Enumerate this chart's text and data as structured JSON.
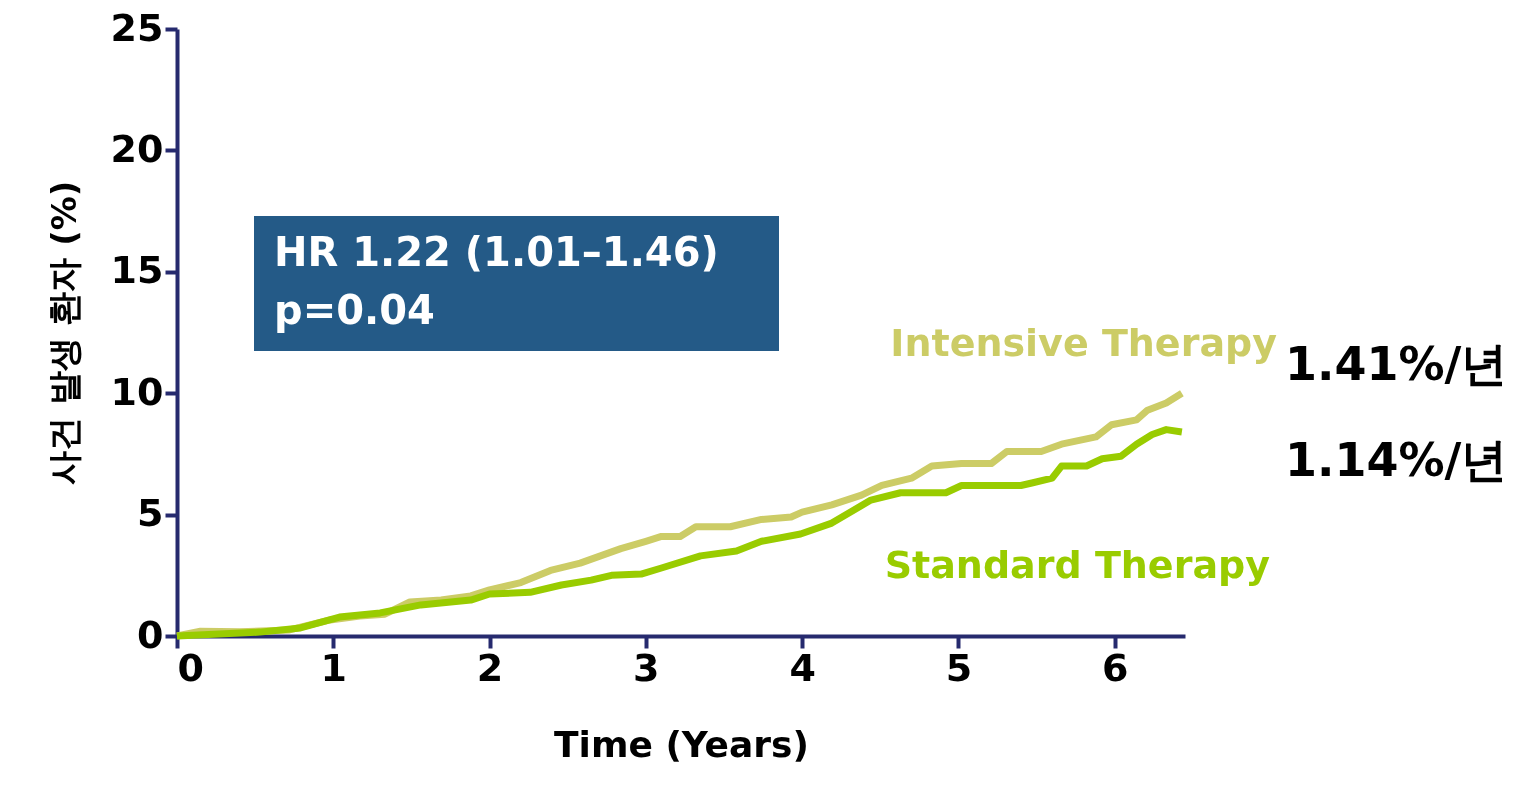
{
  "chart_data": {
    "type": "line",
    "xlabel": "Time (Years)",
    "ylabel": "사건 발생 환자 (%)",
    "xlim": [
      0,
      6.45
    ],
    "xticks": [
      0,
      1,
      2,
      3,
      4,
      5,
      6
    ],
    "ylim": [
      0,
      25
    ],
    "yticks": [
      0,
      5,
      10,
      15,
      20,
      25
    ],
    "grid": false,
    "line_style": "solid",
    "marker": "none",
    "series": [
      {
        "name": "Intensive Therapy",
        "color": "#cccc66",
        "x": [
          0,
          0.15,
          0.4,
          0.72,
          0.98,
          1.17,
          1.33,
          1.49,
          1.69,
          1.88,
          2.0,
          2.2,
          2.39,
          2.58,
          2.71,
          2.84,
          3.0,
          3.1,
          3.22,
          3.32,
          3.54,
          3.74,
          3.93,
          4.0,
          4.19,
          4.38,
          4.51,
          4.7,
          4.83,
          5.02,
          5.21,
          5.31,
          5.53,
          5.66,
          5.88,
          5.98,
          6.14,
          6.21,
          6.33,
          6.43
        ],
        "values": [
          0,
          0.2,
          0.17,
          0.25,
          0.66,
          0.82,
          0.9,
          1.4,
          1.48,
          1.65,
          1.9,
          2.2,
          2.7,
          3.0,
          3.3,
          3.6,
          3.9,
          4.1,
          4.1,
          4.5,
          4.5,
          4.8,
          4.9,
          5.1,
          5.4,
          5.8,
          6.2,
          6.5,
          7.0,
          7.1,
          7.1,
          7.6,
          7.6,
          7.9,
          8.2,
          8.7,
          8.9,
          9.3,
          9.6,
          10.0
        ]
      },
      {
        "name": "Standard Therapy",
        "color": "#99cc00",
        "x": [
          0,
          0.53,
          0.79,
          1.04,
          1.3,
          1.56,
          1.88,
          2.0,
          2.26,
          2.46,
          2.65,
          2.78,
          2.97,
          3.1,
          3.35,
          3.58,
          3.74,
          3.99,
          4.19,
          4.44,
          4.63,
          4.92,
          5.02,
          5.4,
          5.47,
          5.6,
          5.66,
          5.82,
          5.92,
          6.04,
          6.14,
          6.24,
          6.33,
          6.43
        ],
        "values": [
          0,
          0.16,
          0.33,
          0.78,
          0.95,
          1.28,
          1.48,
          1.73,
          1.8,
          2.1,
          2.3,
          2.5,
          2.55,
          2.8,
          3.3,
          3.5,
          3.9,
          4.2,
          4.65,
          5.6,
          5.9,
          5.9,
          6.2,
          6.2,
          6.3,
          6.5,
          7.0,
          7.0,
          7.3,
          7.4,
          7.9,
          8.3,
          8.5,
          8.4
        ]
      }
    ],
    "annotations": [
      "HR 1.22 (1.01–1.46)\np=0.04",
      "1.41%/년",
      "1.14%/년"
    ]
  }
}
